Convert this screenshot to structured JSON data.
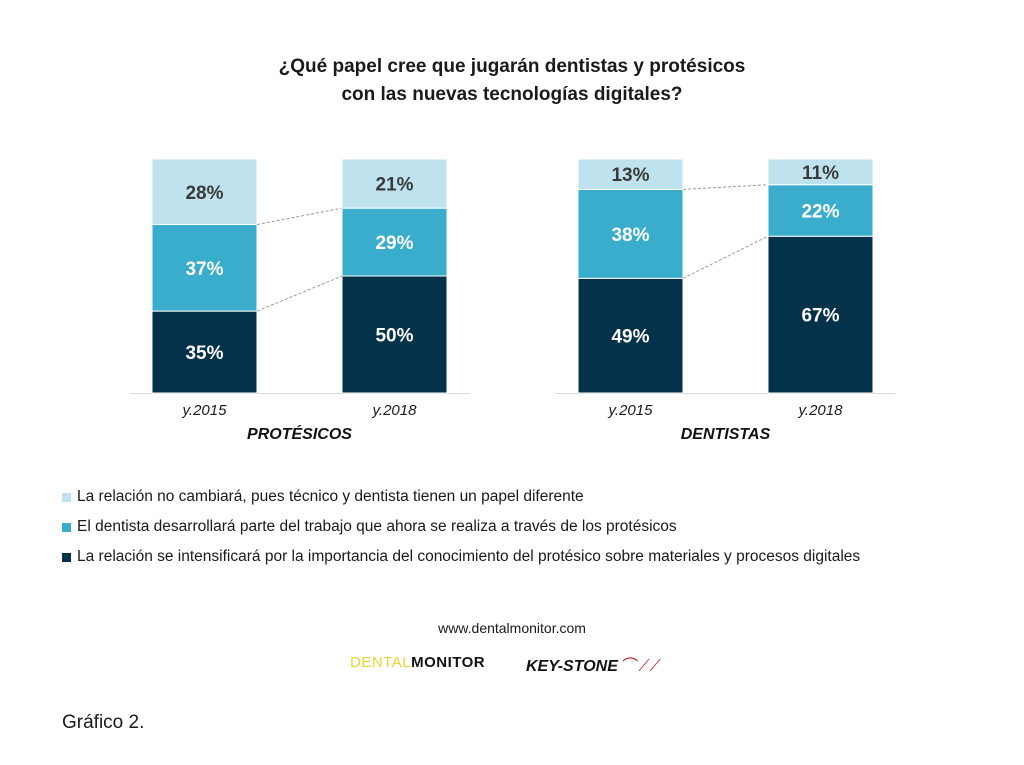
{
  "title": [
    "¿Qué papel cree que jugarán dentistas y protésicos",
    "con las nuevas tecnologías digitales?"
  ],
  "colors": {
    "light": "#bfe3ee",
    "mid": "#3aaccc",
    "dark": "#04324a"
  },
  "chart_data": {
    "type": "bar",
    "stacked": true,
    "title": "¿Qué papel cree que jugarán dentistas y protésicos con las nuevas tecnologías digitales?",
    "groups": [
      {
        "name": "PROTÉSICOS",
        "categories": [
          "y.2015",
          "y.2018"
        ],
        "series": [
          {
            "name": "La relación se intensificará por la importancia del conocimiento del protésico sobre materiales y procesos digitales",
            "values": [
              35,
              50
            ],
            "labels": [
              "35%",
              "50%"
            ]
          },
          {
            "name": "El dentista desarrollará parte del trabajo que ahora se realiza a través de los protésicos",
            "values": [
              37,
              29
            ],
            "labels": [
              "37%",
              "29%"
            ]
          },
          {
            "name": "La relación no cambiará, pues técnico y dentista tienen un papel diferente",
            "values": [
              28,
              21
            ],
            "labels": [
              "28%",
              "21%"
            ]
          }
        ]
      },
      {
        "name": "DENTISTAS",
        "categories": [
          "y.2015",
          "y.2018"
        ],
        "series": [
          {
            "name": "La relación se intensificará por la importancia del conocimiento del protésico sobre materiales y procesos digitales",
            "values": [
              49,
              67
            ],
            "labels": [
              "49%",
              "67%"
            ]
          },
          {
            "name": "El dentista desarrollará parte del trabajo que ahora se realiza a través de los protésicos",
            "values": [
              38,
              22
            ],
            "labels": [
              "38%",
              "22%"
            ]
          },
          {
            "name": "La relación no cambiará, pues técnico y dentista tienen un papel diferente",
            "values": [
              13,
              11
            ],
            "labels": [
              "13%",
              "11%"
            ]
          }
        ]
      }
    ],
    "ylim": [
      0,
      100
    ],
    "grid": false,
    "legend_position": "bottom"
  },
  "legend": [
    "La relación no cambiará, pues técnico y dentista tienen un papel diferente",
    "El dentista desarrollará parte del trabajo que ahora se realiza a través de los protésicos",
    "La relación se intensificará por la importancia del conocimiento del protésico sobre materiales y procesos digitales"
  ],
  "url": "www.dentalmonitor.com",
  "logos": {
    "dental": "DENTAL",
    "monitor": "MONITOR",
    "keystone": "KEY-STONE"
  },
  "caption": "Gráfico 2."
}
